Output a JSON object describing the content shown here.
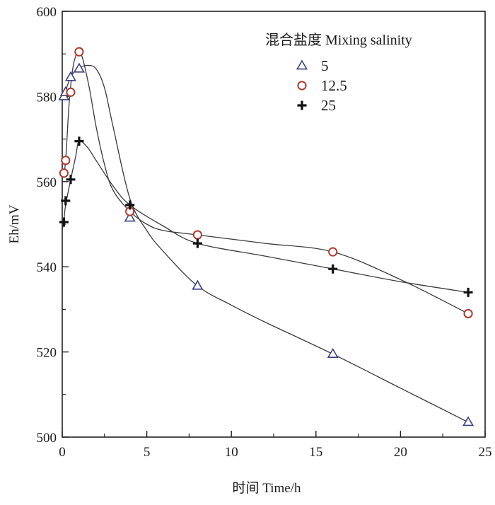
{
  "chart_data": {
    "type": "line",
    "title": "",
    "xlabel": "时间 Time/h",
    "ylabel": "Eh/mV",
    "xlim": [
      0,
      25
    ],
    "ylim": [
      500,
      600
    ],
    "xticks": [
      0,
      5,
      10,
      15,
      20,
      25
    ],
    "yticks": [
      500,
      520,
      540,
      560,
      580,
      600
    ],
    "xtick_labels": [
      "0",
      "5",
      "10",
      "15",
      "20",
      "25"
    ],
    "ytick_labels": [
      "500",
      "520",
      "540",
      "560",
      "580",
      "600"
    ],
    "grid": false,
    "legend": {
      "title": "混合盐度 Mixing salinity",
      "position": "top-right",
      "entries": [
        "5",
        "12.5",
        "25"
      ]
    },
    "series": [
      {
        "name": "5",
        "marker": "triangle",
        "color": "#3d3f86",
        "x": [
          0.1,
          0.2,
          0.5,
          1,
          4,
          8,
          16,
          24
        ],
        "y": [
          580,
          581,
          584.5,
          586.5,
          551.5,
          535.5,
          519.5,
          503.5
        ]
      },
      {
        "name": "12.5",
        "marker": "circle",
        "color": "#b03a2e",
        "x": [
          0.1,
          0.2,
          0.5,
          1,
          4,
          8,
          16,
          24
        ],
        "y": [
          562,
          565,
          581,
          590.5,
          553,
          547.5,
          543.5,
          529
        ]
      },
      {
        "name": "25",
        "marker": "plus",
        "color": "#111111",
        "x": [
          0.1,
          0.2,
          0.5,
          1,
          4,
          8,
          16,
          24
        ],
        "y": [
          550.5,
          555.5,
          560.5,
          569.5,
          554.5,
          545.5,
          539.5,
          534
        ]
      }
    ],
    "fit_curves": [
      {
        "name": "5",
        "x": [
          0,
          0.15,
          0.3,
          0.5,
          0.75,
          1,
          1.5,
          2,
          2.5,
          3,
          4,
          5,
          6,
          8,
          10,
          12,
          16,
          20,
          24
        ],
        "y": [
          579,
          580.5,
          582.5,
          584.5,
          586,
          586.8,
          587.3,
          586.5,
          582,
          573,
          556,
          548.5,
          543.5,
          535.5,
          531,
          527,
          519.5,
          511.5,
          503.5
        ]
      },
      {
        "name": "12.5",
        "x": [
          0,
          0.15,
          0.25,
          0.4,
          0.6,
          0.8,
          1,
          1.2,
          1.6,
          2,
          2.5,
          3,
          4,
          5,
          6,
          8,
          12,
          16,
          20,
          24
        ],
        "y": [
          561,
          563,
          568,
          578,
          586,
          589.5,
          590.5,
          589,
          582,
          573,
          564,
          558,
          553,
          550,
          548.5,
          547.5,
          545.5,
          543.5,
          537,
          529
        ]
      },
      {
        "name": "25",
        "x": [
          0,
          0.1,
          0.2,
          0.5,
          0.8,
          1,
          1.5,
          2,
          3,
          4,
          6,
          8,
          12,
          16,
          20,
          24
        ],
        "y": [
          548.5,
          551,
          554.5,
          560.5,
          566,
          569.5,
          568,
          565,
          559,
          554.5,
          549.5,
          545.5,
          542.5,
          539.5,
          536.5,
          534
        ]
      }
    ]
  }
}
